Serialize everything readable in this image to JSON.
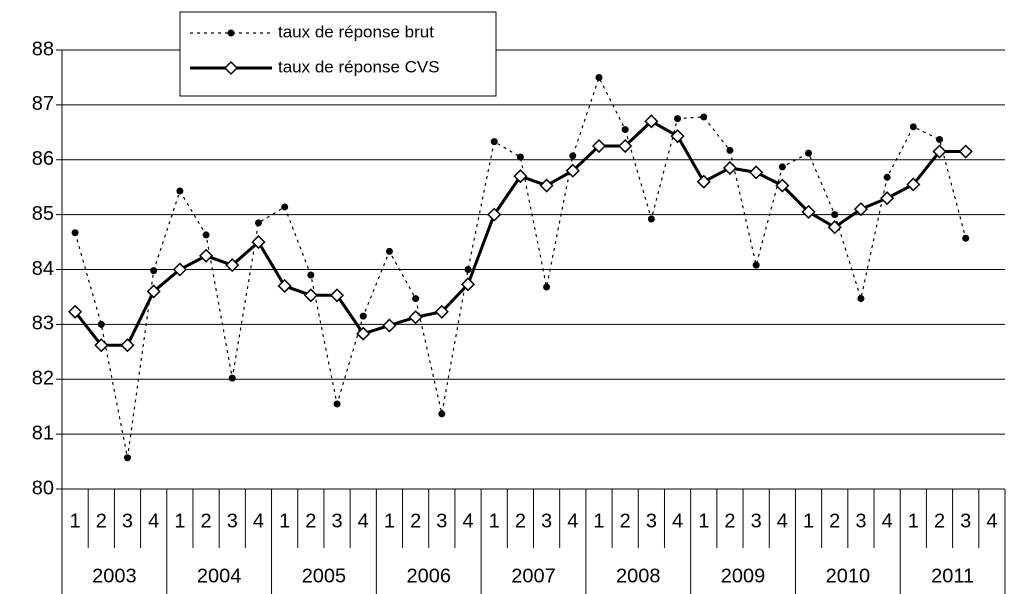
{
  "chart_data": {
    "type": "line",
    "categories": [
      "1",
      "2",
      "3",
      "4",
      "1",
      "2",
      "3",
      "4",
      "1",
      "2",
      "3",
      "4",
      "1",
      "2",
      "3",
      "4",
      "1",
      "2",
      "3",
      "4",
      "1",
      "2",
      "3",
      "4",
      "1",
      "2",
      "3",
      "4",
      "1",
      "2",
      "3",
      "4",
      "1",
      "2",
      "3",
      "4"
    ],
    "years": [
      "2003",
      "2004",
      "2005",
      "2006",
      "2007",
      "2008",
      "2009",
      "2010",
      "2011"
    ],
    "series": [
      {
        "name": "taux de réponse brut",
        "color": "#000000",
        "style": "dotted",
        "marker": "dot",
        "values": [
          84.67,
          83.0,
          80.57,
          83.98,
          85.43,
          84.63,
          82.02,
          84.85,
          85.14,
          83.9,
          81.55,
          83.15,
          84.33,
          83.47,
          81.37,
          84.0,
          86.33,
          86.05,
          83.68,
          86.07,
          87.5,
          86.55,
          84.92,
          86.75,
          86.78,
          86.17,
          84.08,
          85.87,
          86.12,
          85.0,
          83.47,
          85.68,
          86.6,
          86.37,
          84.57,
          null
        ]
      },
      {
        "name": "taux de réponse CVS",
        "color": "#000000",
        "style": "solid",
        "marker": "diamond",
        "values": [
          83.23,
          82.62,
          82.62,
          83.6,
          84.0,
          84.25,
          84.08,
          84.5,
          83.7,
          83.53,
          83.53,
          82.83,
          82.98,
          83.13,
          83.23,
          83.73,
          85.0,
          85.7,
          85.53,
          85.8,
          86.25,
          86.25,
          86.7,
          86.43,
          85.6,
          85.85,
          85.77,
          85.53,
          85.05,
          84.77,
          85.1,
          85.3,
          85.55,
          86.15,
          86.15,
          null
        ]
      }
    ],
    "ylim": [
      80,
      88
    ],
    "yticks": [
      80,
      81,
      82,
      83,
      84,
      85,
      86,
      87,
      88
    ],
    "grid": true,
    "legend": "top-left"
  }
}
